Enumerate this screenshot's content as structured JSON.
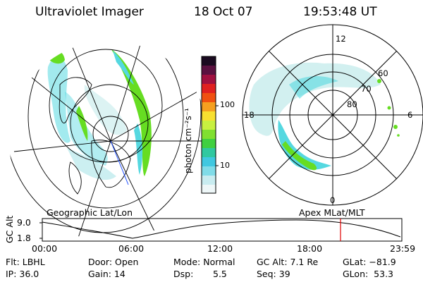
{
  "header": {
    "title": "Ultraviolet Imager",
    "date": "18 Oct 07",
    "time": "19:53:48 UT"
  },
  "left_panel": {
    "caption": "Geographic Lat/Lon"
  },
  "right_panel": {
    "caption": "Apex MLat/MLT",
    "mlt_labels": {
      "top": "12",
      "bottom": "0",
      "left": "18",
      "right": "6"
    },
    "lat_labels": [
      "60",
      "70",
      "80"
    ]
  },
  "colorbar": {
    "unit": "photon cm⁻²s⁻¹",
    "ticks": [
      "100",
      "10"
    ]
  },
  "altitude_plot": {
    "axis_label": "GC Alt",
    "y_ticks": [
      "9.0",
      "1.8"
    ],
    "x_ticks": [
      "00:00",
      "06:00",
      "12:00",
      "18:00",
      "23:59"
    ],
    "marker_time": "19:53:48"
  },
  "status": {
    "filter": "Flt: LBHL",
    "ip": "IP: 36.0",
    "door": "Door: Open",
    "gain": "Gain: 14",
    "mode": "Mode: Normal",
    "dsp_label": "Dsp:",
    "dsp_value": "5.5",
    "gc_alt": "GC Alt: 7.1 Re",
    "seq": "Seq: 39",
    "glat": "GLat: −81.9",
    "glon": "GLon:  53.3"
  },
  "colors": {
    "background": "#ffffff",
    "foreground": "#000000",
    "marker": "#e00000",
    "aurora_low": "#55d8e0",
    "aurora_high": "#66dd22"
  }
}
